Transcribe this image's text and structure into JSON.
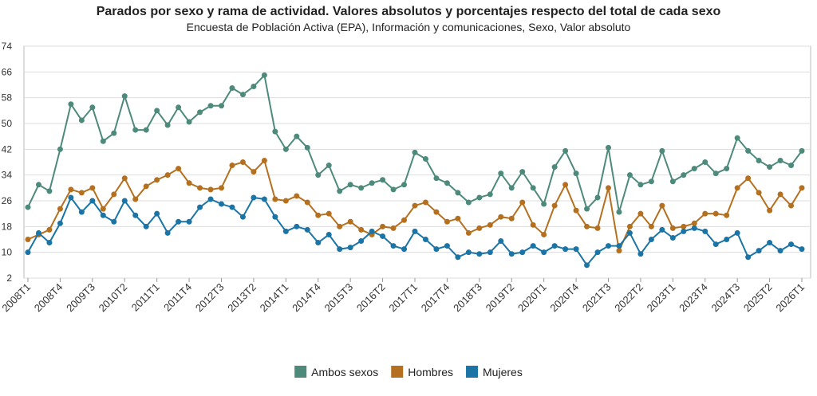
{
  "chart_data": {
    "type": "line",
    "title": "Parados por sexo y rama de actividad. Valores absolutos y porcentajes respecto del total de cada sexo",
    "subtitle": "Encuesta de Población Activa (EPA), Información y comunicaciones, Sexo, Valor absoluto",
    "categories": [
      "2008T1",
      null,
      null,
      "2008T4",
      null,
      null,
      "2009T3",
      null,
      null,
      "2010T2",
      null,
      null,
      "2011T1",
      null,
      null,
      "2011T4",
      null,
      null,
      "2012T3",
      null,
      null,
      "2013T2",
      null,
      null,
      "2014T1",
      null,
      null,
      "2014T4",
      null,
      null,
      "2015T3",
      null,
      null,
      "2016T2",
      null,
      null,
      "2017T1",
      null,
      null,
      "2017T4",
      null,
      null,
      "2018T3",
      null,
      null,
      "2019T2",
      null,
      null,
      "2020T1",
      null,
      null,
      "2020T4",
      null,
      null,
      "2021T3",
      null,
      null,
      "2022T2",
      null,
      null,
      "2023T1",
      null,
      null,
      "2023T4",
      null,
      null,
      "2024T3",
      null,
      null,
      "2025T2",
      null,
      null,
      "2026T1"
    ],
    "series": [
      {
        "name": "Ambos sexos",
        "color": "#4e8a7c",
        "values": [
          24,
          31,
          29,
          42,
          56,
          51,
          55,
          44.5,
          47,
          58.5,
          48,
          48,
          54,
          49.5,
          55,
          50.5,
          53.5,
          55.5,
          55.5,
          61,
          59,
          61.5,
          65,
          47.5,
          42,
          46,
          42.5,
          34,
          37,
          29,
          31,
          30,
          31.5,
          32.5,
          29.5,
          31,
          41,
          39,
          33,
          31.5,
          28.5,
          25.5,
          27,
          28,
          34.5,
          30,
          35,
          30,
          25,
          36.5,
          41.5,
          34.5,
          23.5,
          27,
          42.5,
          22.5,
          34,
          31,
          32,
          41.5,
          32,
          34,
          36,
          38,
          34.5,
          36,
          45.5,
          41.5,
          38.5,
          36.5,
          38.5,
          37,
          41.5
        ]
      },
      {
        "name": "Hombres",
        "color": "#b5701f",
        "values": [
          14,
          15.5,
          17,
          23.5,
          29.5,
          28.5,
          30,
          23.5,
          28,
          33,
          26.5,
          30.5,
          32.5,
          34,
          36,
          31.5,
          30,
          29.5,
          30,
          37,
          38,
          35,
          38.5,
          26.5,
          26,
          27.5,
          25.5,
          21.5,
          22,
          18,
          19.5,
          17,
          15.5,
          18,
          17.5,
          20,
          24.5,
          25.5,
          22.5,
          19.5,
          20.5,
          16,
          17.5,
          18.5,
          21,
          20.5,
          25.5,
          18.5,
          15.5,
          24.5,
          31,
          23,
          18,
          17.5,
          30,
          10.5,
          18,
          22,
          18,
          24.5,
          17.5,
          18,
          19,
          22,
          22,
          21.5,
          30,
          33,
          28.5,
          23,
          28,
          24.5,
          30
        ]
      },
      {
        "name": "Mujeres",
        "color": "#1b74a6",
        "values": [
          10,
          16,
          13,
          19,
          27,
          22.5,
          26,
          21.5,
          19.5,
          26,
          21.5,
          18,
          22,
          16,
          19.5,
          19.5,
          24,
          26.5,
          25,
          24,
          21,
          27,
          26.5,
          21,
          16.5,
          18,
          17,
          13,
          15.5,
          11,
          11.5,
          13.5,
          16.5,
          15,
          12,
          11,
          16.5,
          14,
          11,
          12,
          8.5,
          10,
          9.5,
          10,
          13.5,
          9.5,
          10,
          12,
          10,
          12,
          11,
          11,
          6,
          10,
          12,
          12,
          16,
          9.5,
          14,
          17,
          14.5,
          16.5,
          17.5,
          16.5,
          12.5,
          14,
          16,
          8.5,
          10.5,
          13,
          10.5,
          12.5,
          11
        ]
      }
    ],
    "ylim": [
      2,
      74
    ],
    "yticks": [
      2,
      10,
      18,
      26,
      34,
      42,
      50,
      58,
      66,
      74
    ],
    "grid": true,
    "legend": "bottom"
  }
}
